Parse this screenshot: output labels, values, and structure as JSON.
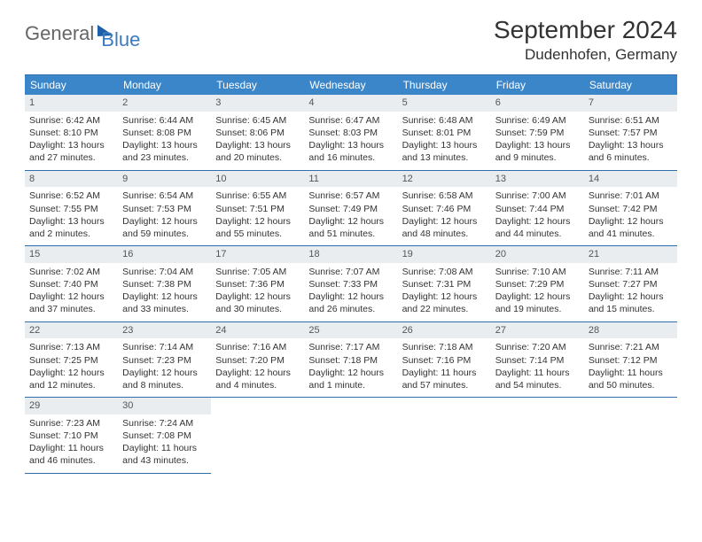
{
  "logo": {
    "part1": "General",
    "part2": "Blue"
  },
  "title": "September 2024",
  "location": "Dudenhofen, Germany",
  "colors": {
    "header_bg": "#3b86c8",
    "header_text": "#ffffff",
    "rule": "#2e6fac",
    "daynum_bg": "#e9edf0",
    "logo_blue": "#3b7bbf",
    "logo_gray": "#666666",
    "body_text": "#333333"
  },
  "daysOfWeek": [
    "Sunday",
    "Monday",
    "Tuesday",
    "Wednesday",
    "Thursday",
    "Friday",
    "Saturday"
  ],
  "cells": [
    {
      "n": "1",
      "sr": "6:42 AM",
      "ss": "8:10 PM",
      "dl": "13 hours and 27 minutes."
    },
    {
      "n": "2",
      "sr": "6:44 AM",
      "ss": "8:08 PM",
      "dl": "13 hours and 23 minutes."
    },
    {
      "n": "3",
      "sr": "6:45 AM",
      "ss": "8:06 PM",
      "dl": "13 hours and 20 minutes."
    },
    {
      "n": "4",
      "sr": "6:47 AM",
      "ss": "8:03 PM",
      "dl": "13 hours and 16 minutes."
    },
    {
      "n": "5",
      "sr": "6:48 AM",
      "ss": "8:01 PM",
      "dl": "13 hours and 13 minutes."
    },
    {
      "n": "6",
      "sr": "6:49 AM",
      "ss": "7:59 PM",
      "dl": "13 hours and 9 minutes."
    },
    {
      "n": "7",
      "sr": "6:51 AM",
      "ss": "7:57 PM",
      "dl": "13 hours and 6 minutes."
    },
    {
      "n": "8",
      "sr": "6:52 AM",
      "ss": "7:55 PM",
      "dl": "13 hours and 2 minutes."
    },
    {
      "n": "9",
      "sr": "6:54 AM",
      "ss": "7:53 PM",
      "dl": "12 hours and 59 minutes."
    },
    {
      "n": "10",
      "sr": "6:55 AM",
      "ss": "7:51 PM",
      "dl": "12 hours and 55 minutes."
    },
    {
      "n": "11",
      "sr": "6:57 AM",
      "ss": "7:49 PM",
      "dl": "12 hours and 51 minutes."
    },
    {
      "n": "12",
      "sr": "6:58 AM",
      "ss": "7:46 PM",
      "dl": "12 hours and 48 minutes."
    },
    {
      "n": "13",
      "sr": "7:00 AM",
      "ss": "7:44 PM",
      "dl": "12 hours and 44 minutes."
    },
    {
      "n": "14",
      "sr": "7:01 AM",
      "ss": "7:42 PM",
      "dl": "12 hours and 41 minutes."
    },
    {
      "n": "15",
      "sr": "7:02 AM",
      "ss": "7:40 PM",
      "dl": "12 hours and 37 minutes."
    },
    {
      "n": "16",
      "sr": "7:04 AM",
      "ss": "7:38 PM",
      "dl": "12 hours and 33 minutes."
    },
    {
      "n": "17",
      "sr": "7:05 AM",
      "ss": "7:36 PM",
      "dl": "12 hours and 30 minutes."
    },
    {
      "n": "18",
      "sr": "7:07 AM",
      "ss": "7:33 PM",
      "dl": "12 hours and 26 minutes."
    },
    {
      "n": "19",
      "sr": "7:08 AM",
      "ss": "7:31 PM",
      "dl": "12 hours and 22 minutes."
    },
    {
      "n": "20",
      "sr": "7:10 AM",
      "ss": "7:29 PM",
      "dl": "12 hours and 19 minutes."
    },
    {
      "n": "21",
      "sr": "7:11 AM",
      "ss": "7:27 PM",
      "dl": "12 hours and 15 minutes."
    },
    {
      "n": "22",
      "sr": "7:13 AM",
      "ss": "7:25 PM",
      "dl": "12 hours and 12 minutes."
    },
    {
      "n": "23",
      "sr": "7:14 AM",
      "ss": "7:23 PM",
      "dl": "12 hours and 8 minutes."
    },
    {
      "n": "24",
      "sr": "7:16 AM",
      "ss": "7:20 PM",
      "dl": "12 hours and 4 minutes."
    },
    {
      "n": "25",
      "sr": "7:17 AM",
      "ss": "7:18 PM",
      "dl": "12 hours and 1 minute."
    },
    {
      "n": "26",
      "sr": "7:18 AM",
      "ss": "7:16 PM",
      "dl": "11 hours and 57 minutes."
    },
    {
      "n": "27",
      "sr": "7:20 AM",
      "ss": "7:14 PM",
      "dl": "11 hours and 54 minutes."
    },
    {
      "n": "28",
      "sr": "7:21 AM",
      "ss": "7:12 PM",
      "dl": "11 hours and 50 minutes."
    },
    {
      "n": "29",
      "sr": "7:23 AM",
      "ss": "7:10 PM",
      "dl": "11 hours and 46 minutes."
    },
    {
      "n": "30",
      "sr": "7:24 AM",
      "ss": "7:08 PM",
      "dl": "11 hours and 43 minutes."
    }
  ],
  "labels": {
    "sunrise": "Sunrise:",
    "sunset": "Sunset:",
    "daylight": "Daylight:"
  }
}
